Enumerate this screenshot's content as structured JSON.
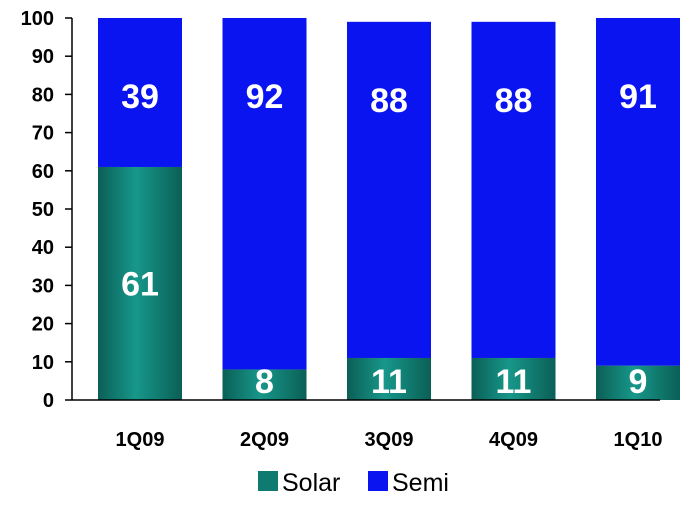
{
  "chart_data": {
    "type": "bar",
    "stacked": true,
    "categories": [
      "1Q09",
      "2Q09",
      "3Q09",
      "4Q09",
      "1Q10"
    ],
    "series": [
      {
        "name": "Solar",
        "values": [
          61,
          8,
          11,
          11,
          9
        ],
        "color": "#0f7a70"
      },
      {
        "name": "Semi",
        "values": [
          39,
          92,
          88,
          88,
          91
        ],
        "color": "#0a14f0"
      }
    ],
    "ylim": [
      0,
      100
    ],
    "yticks": [
      0,
      10,
      20,
      30,
      40,
      50,
      60,
      70,
      80,
      90,
      100
    ],
    "grid": false,
    "legend": "bottom"
  }
}
